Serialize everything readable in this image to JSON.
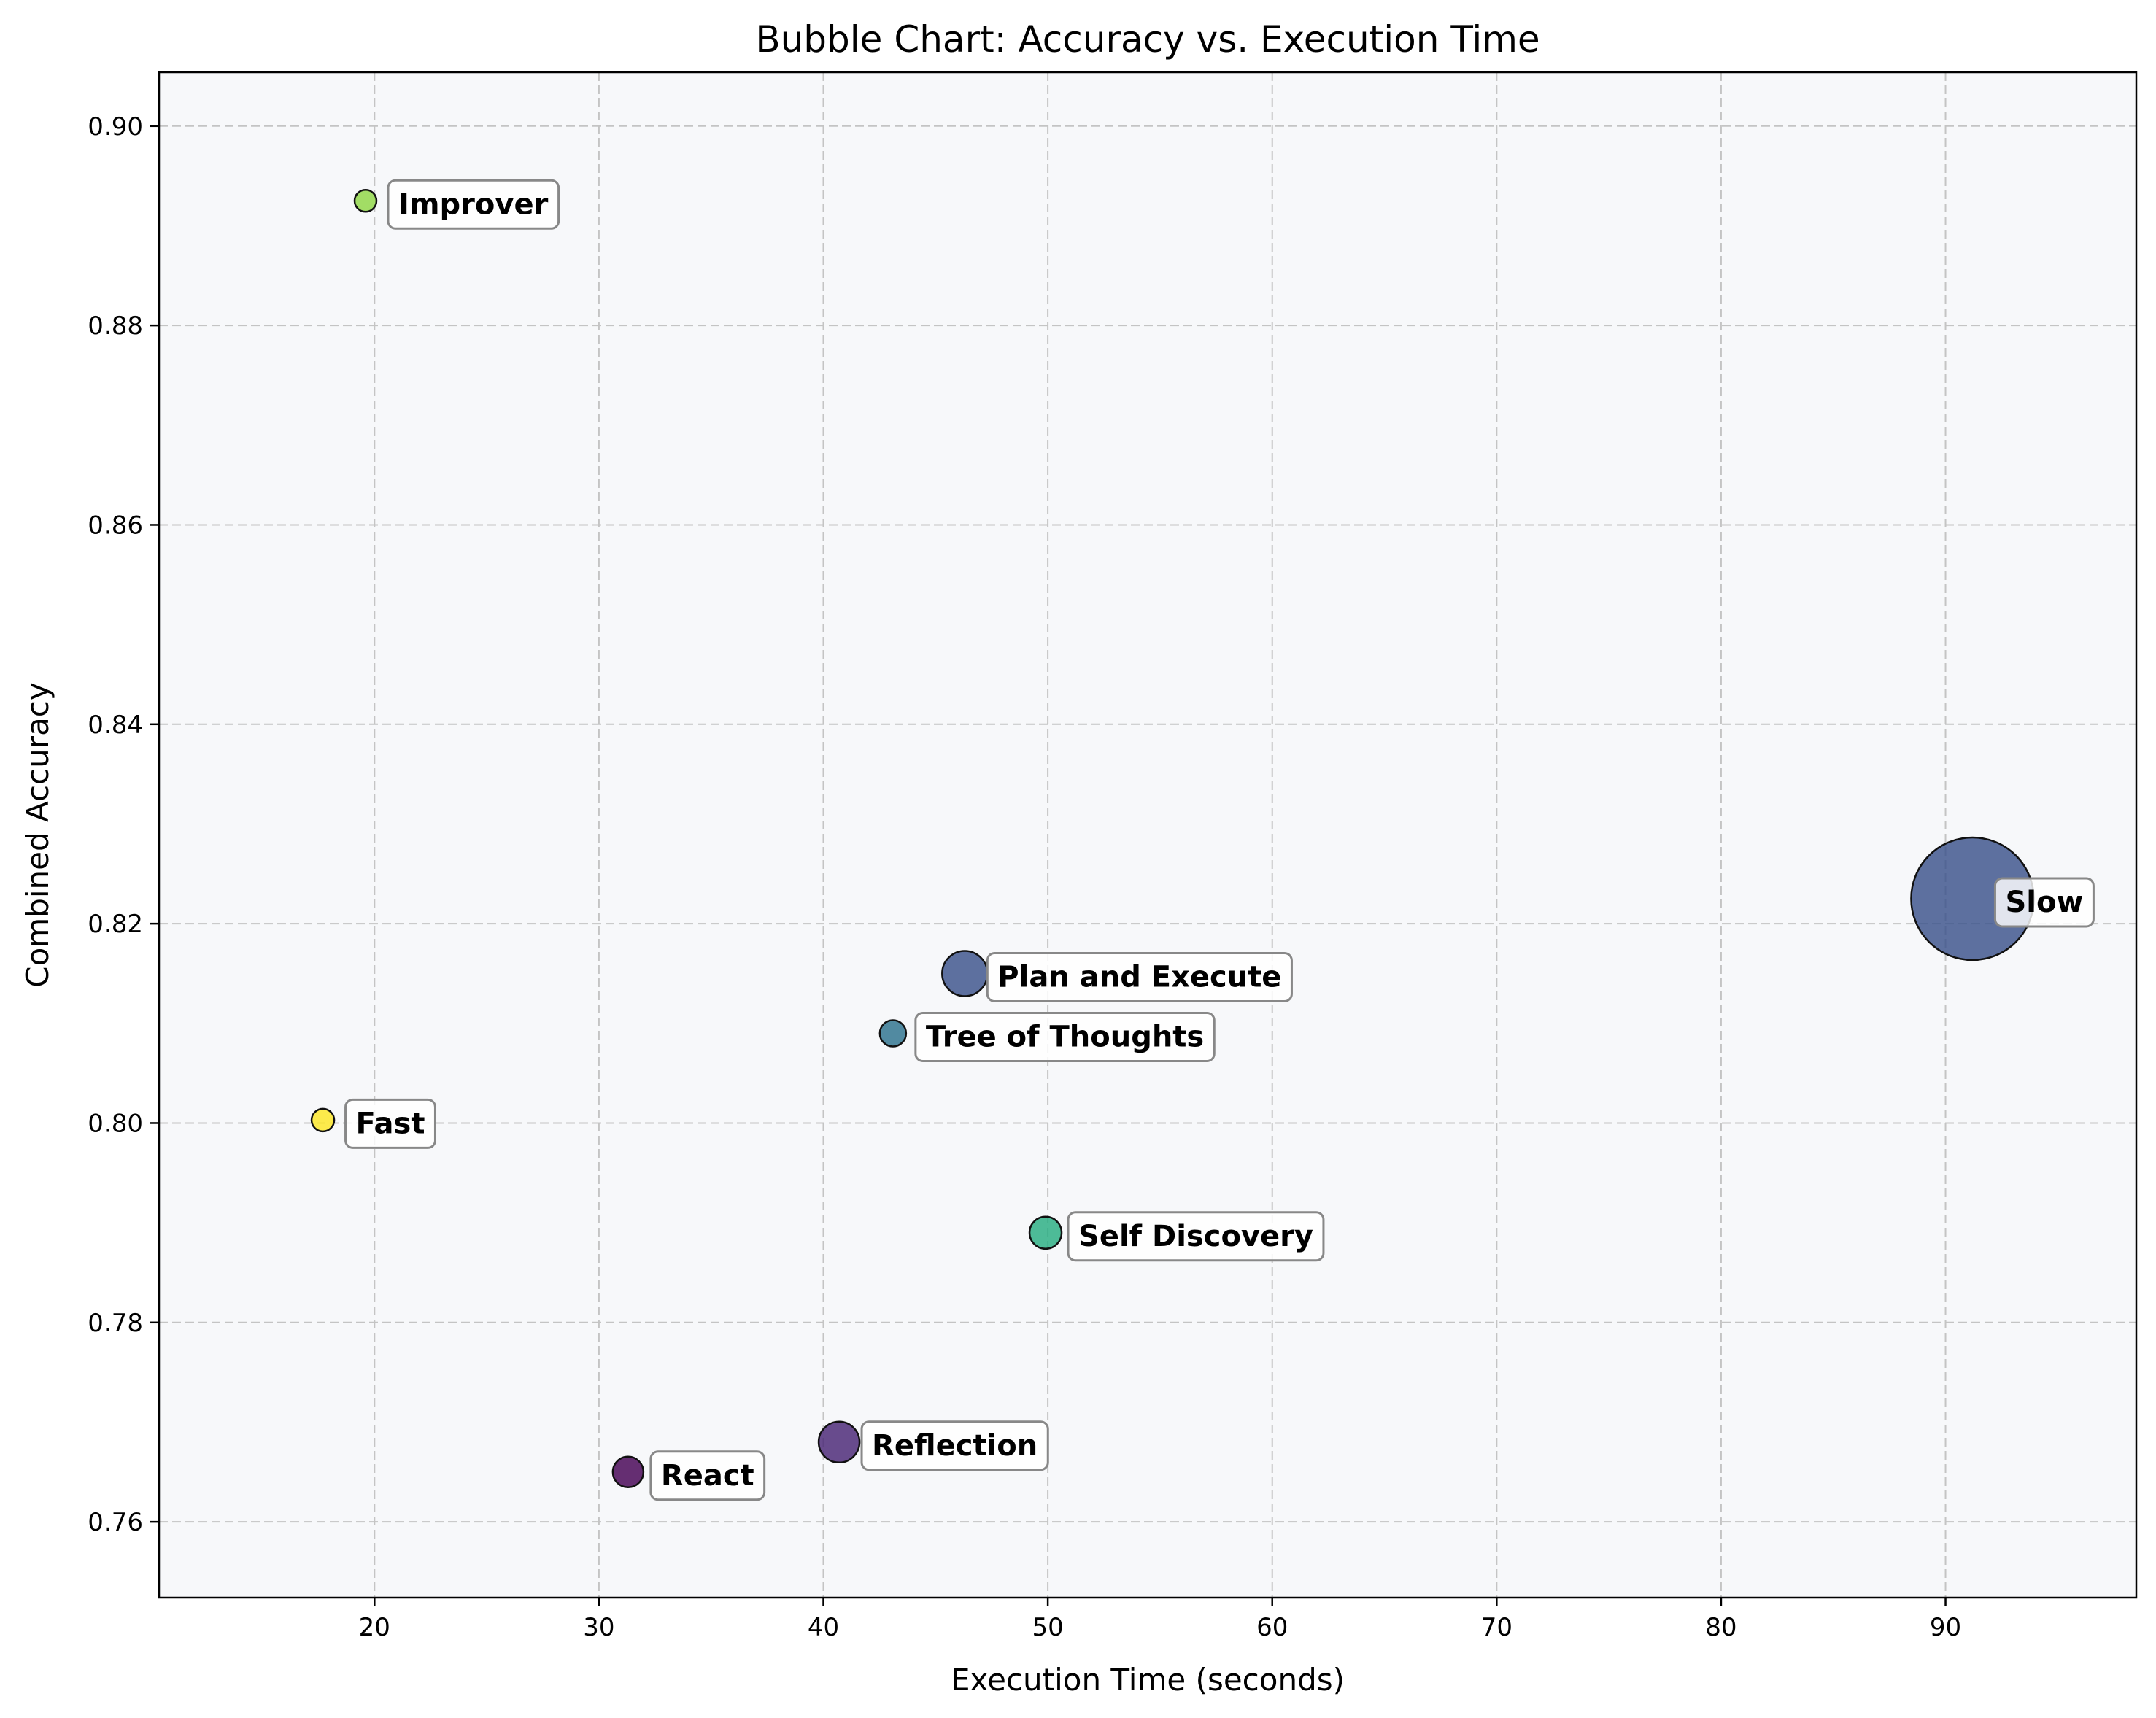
{
  "chart_data": {
    "type": "scatter",
    "title": "Bubble Chart: Accuracy vs. Execution Time",
    "xlabel": "Execution Time (seconds)",
    "ylabel": "Combined Accuracy",
    "xlim": [
      10.4,
      98.5
    ],
    "ylim": [
      0.7524,
      0.9054
    ],
    "xticks": [
      20,
      30,
      40,
      50,
      60,
      70,
      80,
      90
    ],
    "xtick_labels": [
      "20",
      "30",
      "40",
      "50",
      "60",
      "70",
      "80",
      "90"
    ],
    "yticks": [
      0.76,
      0.78,
      0.8,
      0.82,
      0.84,
      0.86,
      0.88,
      0.9
    ],
    "ytick_labels": [
      "0.76",
      "0.78",
      "0.80",
      "0.82",
      "0.84",
      "0.86",
      "0.88",
      "0.90"
    ],
    "grid": true,
    "bubble_size_encoding": "execution time",
    "points": [
      {
        "label": "React",
        "x": 31.3,
        "y": 0.765,
        "size": 42,
        "color": "#440154"
      },
      {
        "label": "Reflection",
        "x": 40.7,
        "y": 0.768,
        "size": 56,
        "color": "#482475"
      },
      {
        "label": "Plan and Execute",
        "x": 46.3,
        "y": 0.815,
        "size": 62,
        "color": "#3b528b"
      },
      {
        "label": "Tree of Thoughts",
        "x": 43.1,
        "y": 0.809,
        "size": 36,
        "color": "#2c728e"
      },
      {
        "label": "Self Discovery",
        "x": 49.9,
        "y": 0.789,
        "size": 44,
        "color": "#27ad81"
      },
      {
        "label": "Slow",
        "x": 91.2,
        "y": 0.8225,
        "size": 168,
        "color": "#3b528b"
      },
      {
        "label": "Improver",
        "x": 19.6,
        "y": 0.8925,
        "size": 30,
        "color": "#8fd744"
      },
      {
        "label": "Fast",
        "x": 17.7,
        "y": 0.8003,
        "size": 31,
        "color": "#fde725"
      }
    ]
  }
}
